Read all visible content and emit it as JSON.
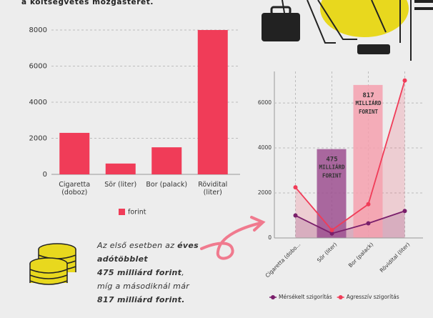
{
  "intro": "a költségvetés mozgásterét.",
  "note": {
    "lines": [
      [
        {
          "text": "Az első esetben az "
        },
        {
          "text": "éves",
          "bold": true
        }
      ],
      [
        {
          "text": "adótöbblet",
          "bold": true
        }
      ],
      [
        {
          "text": "475 milliárd forint",
          "bold": true
        },
        {
          "text": ","
        }
      ],
      [
        {
          "text": "míg a másodiknál már"
        }
      ],
      [
        {
          "text": "817 milliárd forint.",
          "bold": true
        }
      ]
    ]
  },
  "chart_data": [
    {
      "type": "bar",
      "categories": [
        "Cigaretta (doboz)",
        "Sör (liter)",
        "Bor (palack)",
        "Rövidital (liter)"
      ],
      "series": [
        {
          "name": "forint",
          "color": "#f03c58",
          "values": [
            2300,
            600,
            1500,
            8000
          ]
        }
      ],
      "ylim": [
        0,
        8000
      ],
      "yticks": [
        0,
        2000,
        4000,
        6000,
        8000
      ],
      "grid": true,
      "legend": "bottom"
    },
    {
      "type": "line",
      "categories": [
        "Cigaretta (dobo...",
        "Sör (liter)",
        "Bor (palack)",
        "Rövidital (liter)"
      ],
      "series": [
        {
          "name": "Mérsékelt szigorítás",
          "color": "#7a1f6b",
          "values": [
            1000,
            200,
            650,
            1200
          ]
        },
        {
          "name": "Agresszív szigorítás",
          "color": "#f03c58",
          "values": [
            2250,
            350,
            1500,
            7000
          ]
        }
      ],
      "highlights": [
        {
          "category": "Sör (liter)",
          "value": 3950,
          "label": "475 MILLIÁRD FORINT",
          "color": "#9c4f8f"
        },
        {
          "category": "Bor (palack)",
          "value": 6800,
          "label": "817 MILLIÁRD FORINT",
          "color": "#f4a0ae"
        }
      ],
      "ylim": [
        0,
        7400
      ],
      "yticks": [
        0,
        2000,
        4000,
        6000
      ],
      "grid": true,
      "legend": "bottom"
    }
  ]
}
